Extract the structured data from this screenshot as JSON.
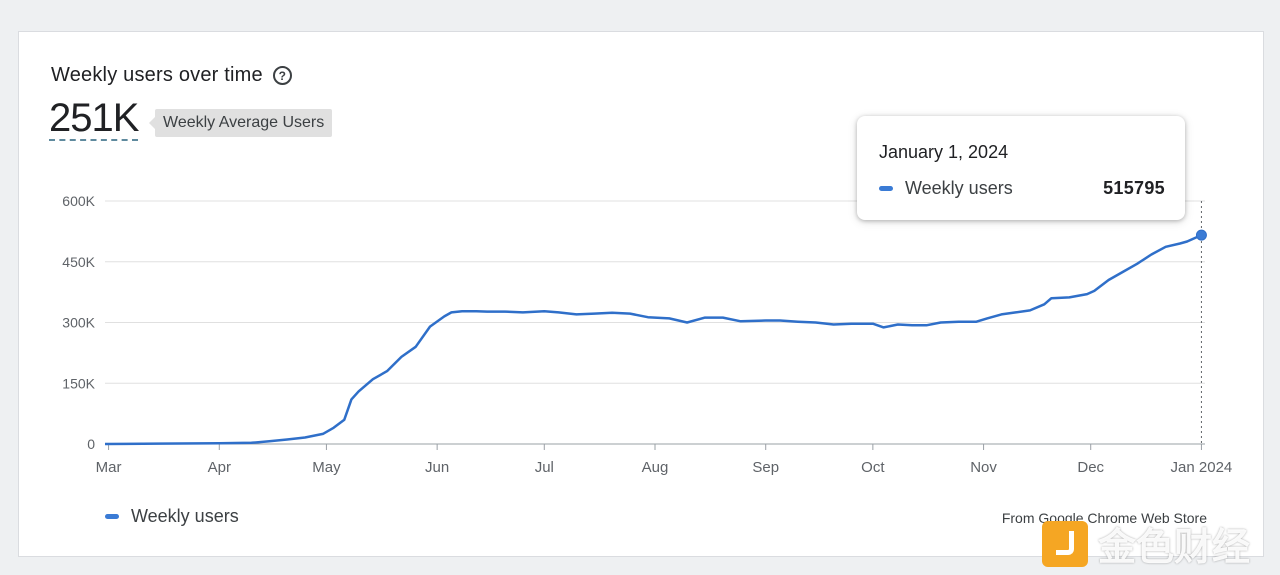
{
  "title": "Weekly users over time",
  "help_icon": "help-circle-icon",
  "summary": {
    "value": "251K",
    "label": "Weekly Average Users"
  },
  "source": "From Google Chrome Web Store",
  "legend": {
    "series_name": "Weekly users"
  },
  "tooltip": {
    "date": "January 1, 2024",
    "series": "Weekly users",
    "value": "515795"
  },
  "watermark": {
    "text": "金色财经",
    "icon": "jinse-logo-icon"
  },
  "colors": {
    "line": "#2f6fc9",
    "grid": "#e0e0e0",
    "axis": "#5f6368"
  },
  "chart_data": {
    "type": "line",
    "title": "Weekly users over time",
    "xlabel": "",
    "ylabel": "",
    "ylim": [
      0,
      600000
    ],
    "yticks": [
      0,
      150000,
      300000,
      450000,
      600000
    ],
    "ytick_labels": [
      "0",
      "150K",
      "300K",
      "450K",
      "600K"
    ],
    "xlim": [
      "2023-02-28",
      "2024-01-02"
    ],
    "xticks": [
      "2023-03-01",
      "2023-04-01",
      "2023-05-01",
      "2023-06-01",
      "2023-07-01",
      "2023-08-01",
      "2023-09-01",
      "2023-10-01",
      "2023-11-01",
      "2023-12-01",
      "2024-01-01"
    ],
    "xtick_labels": [
      "Mar",
      "Apr",
      "May",
      "Jun",
      "Jul",
      "Aug",
      "Sep",
      "Oct",
      "Nov",
      "Dec",
      "Jan 2024"
    ],
    "grid": true,
    "legend": "bottom-left",
    "highlight": {
      "x": "2024-01-01",
      "y": 515795
    },
    "series": [
      {
        "name": "Weekly users",
        "x": [
          "2023-02-28",
          "2023-03-15",
          "2023-04-01",
          "2023-04-10",
          "2023-04-15",
          "2023-04-20",
          "2023-04-25",
          "2023-04-30",
          "2023-05-03",
          "2023-05-06",
          "2023-05-08",
          "2023-05-10",
          "2023-05-14",
          "2023-05-18",
          "2023-05-22",
          "2023-05-26",
          "2023-05-30",
          "2023-06-03",
          "2023-06-05",
          "2023-06-08",
          "2023-06-12",
          "2023-06-15",
          "2023-06-20",
          "2023-06-25",
          "2023-07-01",
          "2023-07-05",
          "2023-07-10",
          "2023-07-15",
          "2023-07-20",
          "2023-07-25",
          "2023-07-30",
          "2023-08-05",
          "2023-08-10",
          "2023-08-15",
          "2023-08-20",
          "2023-08-25",
          "2023-09-01",
          "2023-09-05",
          "2023-09-10",
          "2023-09-15",
          "2023-09-20",
          "2023-09-25",
          "2023-10-01",
          "2023-10-04",
          "2023-10-08",
          "2023-10-12",
          "2023-10-16",
          "2023-10-20",
          "2023-10-25",
          "2023-10-30",
          "2023-11-02",
          "2023-11-06",
          "2023-11-10",
          "2023-11-14",
          "2023-11-18",
          "2023-11-20",
          "2023-11-25",
          "2023-11-30",
          "2023-12-02",
          "2023-12-06",
          "2023-12-10",
          "2023-12-14",
          "2023-12-18",
          "2023-12-22",
          "2023-12-26",
          "2023-12-28",
          "2024-01-01",
          "2024-01-02"
        ],
        "y": [
          0,
          1000,
          2000,
          3000,
          7000,
          11000,
          16000,
          25000,
          40000,
          60000,
          110000,
          130000,
          160000,
          180000,
          215000,
          240000,
          290000,
          315000,
          325000,
          328000,
          328000,
          327000,
          327000,
          325000,
          328000,
          325000,
          320000,
          322000,
          324000,
          322000,
          313000,
          310000,
          300000,
          312000,
          312000,
          303000,
          305000,
          305000,
          302000,
          300000,
          295000,
          297000,
          297000,
          288000,
          295000,
          293000,
          293000,
          300000,
          302000,
          302000,
          310000,
          320000,
          325000,
          330000,
          345000,
          360000,
          362000,
          370000,
          378000,
          405000,
          425000,
          445000,
          468000,
          487000,
          495000,
          500000,
          515795,
          525000
        ]
      }
    ]
  }
}
